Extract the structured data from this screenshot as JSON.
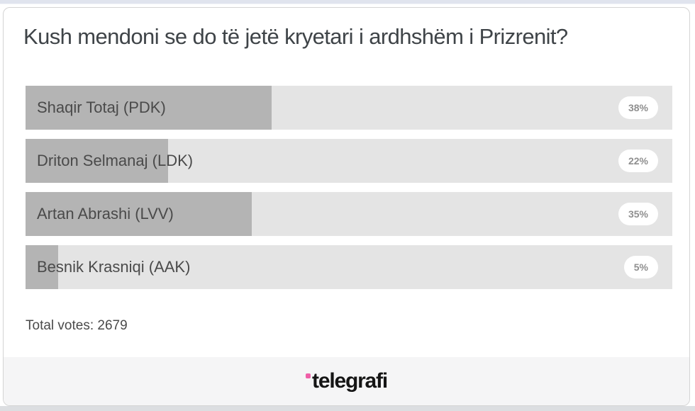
{
  "poll": {
    "question": "Kush mendoni se do të jetë kryetari i ardhshëm i Prizrenit?",
    "options": [
      {
        "label": "Shaqir Totaj (PDK)",
        "percent_label": "38%",
        "percent": 38
      },
      {
        "label": "Driton Selmanaj (LDK)",
        "percent_label": "22%",
        "percent": 22
      },
      {
        "label": "Artan Abrashi (LVV)",
        "percent_label": "35%",
        "percent": 35
      },
      {
        "label": "Besnik Krasniqi (AAK)",
        "percent_label": "5%",
        "percent": 5
      }
    ],
    "total_votes_text": "Total votes: 2679",
    "total_votes": 2679
  },
  "footer": {
    "brand_text": "telegrafi",
    "brand_dot_color": "#ef5fa8"
  },
  "colors": {
    "bar_fill": "#b4b4b4",
    "bar_track": "#e4e4e4",
    "badge_bg": "#ffffff",
    "badge_text": "#8f8f8f",
    "title_text": "#3f4448",
    "footer_bg": "#f5f5f6",
    "card_border": "#d4d4d4",
    "top_strip": "#e0e4ee"
  },
  "chart_data": {
    "type": "bar",
    "orientation": "horizontal",
    "title": "Kush mendoni se do të jetë kryetari i ardhshëm i Prizrenit?",
    "categories": [
      "Shaqir Totaj (PDK)",
      "Driton Selmanaj (LDK)",
      "Artan Abrashi (LVV)",
      "Besnik Krasniqi (AAK)"
    ],
    "values": [
      38,
      22,
      35,
      5
    ],
    "unit": "%",
    "xlim": [
      0,
      100
    ],
    "data_labels": [
      "38%",
      "22%",
      "35%",
      "5%"
    ],
    "total_votes": 2679,
    "legend": "none",
    "grid": "off"
  }
}
